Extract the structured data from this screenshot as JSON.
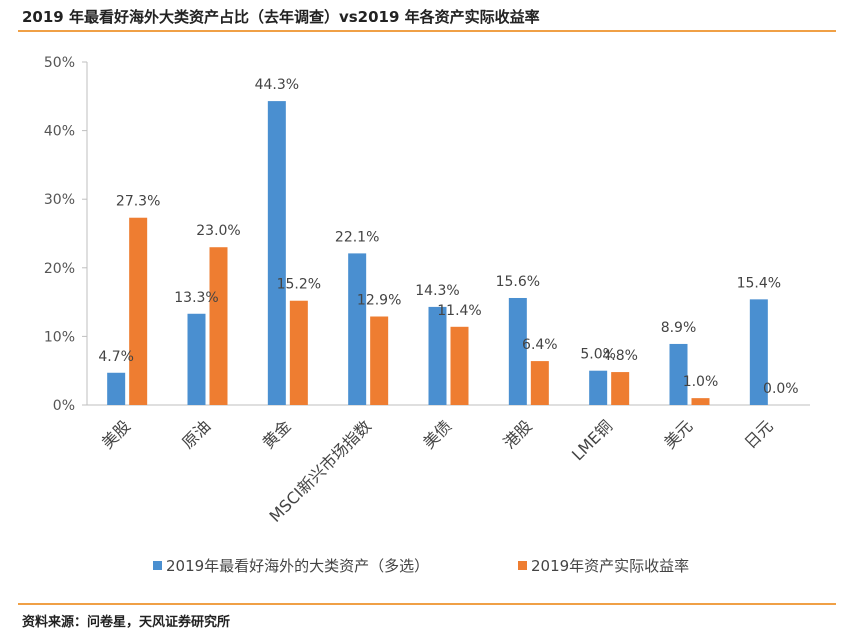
{
  "header": {
    "title": "2019 年最看好海外大类资产占比（去年调查）vs2019 年各资产实际收益率"
  },
  "footer": {
    "source": "资料来源：问卷星，天风证券研究所"
  },
  "colors": {
    "series1": "#4a8fd0",
    "series2": "#ee7d31",
    "accent": "#f0a046",
    "axis": "#bfbfbf"
  },
  "chart_data": {
    "type": "bar",
    "categories": [
      "美股",
      "原油",
      "黄金",
      "MSCI新兴市场指数",
      "美债",
      "港股",
      "LME铜",
      "美元",
      "日元"
    ],
    "series": [
      {
        "name": "2019年最看好海外的大类资产（多选）",
        "values": [
          4.7,
          13.3,
          44.3,
          22.1,
          14.3,
          15.6,
          5.0,
          8.9,
          15.4
        ],
        "labels": [
          "4.7%",
          "13.3%",
          "44.3%",
          "22.1%",
          "14.3%",
          "15.6%",
          "5.0%",
          "8.9%",
          "15.4%"
        ]
      },
      {
        "name": "2019年资产实际收益率",
        "values": [
          27.3,
          23.0,
          15.2,
          12.9,
          11.4,
          6.4,
          4.8,
          1.0,
          0.0
        ],
        "labels": [
          "27.3%",
          "23.0%",
          "15.2%",
          "12.9%",
          "11.4%",
          "6.4%",
          "4.8%",
          "1.0%",
          "0.0%"
        ]
      }
    ],
    "yticks": [
      "0%",
      "10%",
      "20%",
      "30%",
      "40%",
      "50%"
    ],
    "ylim": [
      0,
      50
    ],
    "grid": false,
    "legend_position": "bottom"
  }
}
